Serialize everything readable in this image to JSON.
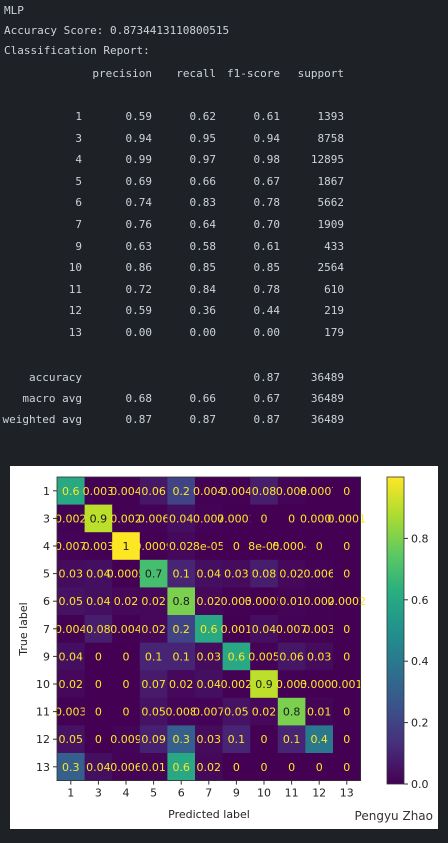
{
  "output": {
    "model_name": "MLP",
    "accuracy_line": "Accuracy Score: 0.8734413110800515",
    "report_heading": "Classification Report:"
  },
  "report": {
    "columns": [
      "precision",
      "recall",
      "f1-score",
      "support"
    ],
    "rows": [
      {
        "label": "1",
        "precision": "0.59",
        "recall": "0.62",
        "f1": "0.61",
        "support": "1393"
      },
      {
        "label": "3",
        "precision": "0.94",
        "recall": "0.95",
        "f1": "0.94",
        "support": "8758"
      },
      {
        "label": "4",
        "precision": "0.99",
        "recall": "0.97",
        "f1": "0.98",
        "support": "12895"
      },
      {
        "label": "5",
        "precision": "0.69",
        "recall": "0.66",
        "f1": "0.67",
        "support": "1867"
      },
      {
        "label": "6",
        "precision": "0.74",
        "recall": "0.83",
        "f1": "0.78",
        "support": "5662"
      },
      {
        "label": "7",
        "precision": "0.76",
        "recall": "0.64",
        "f1": "0.70",
        "support": "1909"
      },
      {
        "label": "9",
        "precision": "0.63",
        "recall": "0.58",
        "f1": "0.61",
        "support": "433"
      },
      {
        "label": "10",
        "precision": "0.86",
        "recall": "0.85",
        "f1": "0.85",
        "support": "2564"
      },
      {
        "label": "11",
        "precision": "0.72",
        "recall": "0.84",
        "f1": "0.78",
        "support": "610"
      },
      {
        "label": "12",
        "precision": "0.59",
        "recall": "0.36",
        "f1": "0.44",
        "support": "219"
      },
      {
        "label": "13",
        "precision": "0.00",
        "recall": "0.00",
        "f1": "0.00",
        "support": "179"
      }
    ],
    "summary": [
      {
        "label": "accuracy",
        "precision": "",
        "recall": "",
        "f1": "0.87",
        "support": "36489"
      },
      {
        "label": "macro avg",
        "precision": "0.68",
        "recall": "0.66",
        "f1": "0.67",
        "support": "36489"
      },
      {
        "label": "weighted avg",
        "precision": "0.87",
        "recall": "0.87",
        "f1": "0.87",
        "support": "36489"
      }
    ]
  },
  "chart_data": {
    "type": "heatmap",
    "title": "",
    "xlabel": "Predicted label",
    "ylabel": "True label",
    "x_categories": [
      "1",
      "3",
      "4",
      "5",
      "6",
      "7",
      "9",
      "10",
      "11",
      "12",
      "13"
    ],
    "y_categories": [
      "1",
      "3",
      "4",
      "5",
      "6",
      "7",
      "9",
      "10",
      "11",
      "12",
      "13"
    ],
    "values": [
      [
        0.6,
        0.003,
        0.004,
        0.06,
        0.2,
        0.004,
        0.004,
        0.08,
        0.008,
        0.0007,
        0
      ],
      [
        0.002,
        0.9,
        0.002,
        0.006,
        0.04,
        0.007,
        0.0001,
        0,
        0,
        0.0001,
        0.0001
      ],
      [
        0.007,
        0.003,
        1,
        0.0009,
        0.02,
        8e-05,
        0,
        8e-05,
        0.0004,
        0,
        0
      ],
      [
        0.03,
        0.04,
        0.0005,
        0.7,
        0.1,
        0.04,
        0.03,
        0.08,
        0.02,
        0.006,
        0
      ],
      [
        0.05,
        0.04,
        0.02,
        0.02,
        0.8,
        0.02,
        0.003,
        0.0005,
        0.01,
        0.002,
        0.0002
      ],
      [
        0.004,
        0.08,
        0.004,
        0.02,
        0.2,
        0.6,
        0.001,
        0.04,
        0.007,
        0.003,
        0
      ],
      [
        0.04,
        0,
        0,
        0.1,
        0.1,
        0.03,
        0.6,
        0.005,
        0.06,
        0.03,
        0
      ],
      [
        0.02,
        0,
        0,
        0.07,
        0.02,
        0.04,
        0.002,
        0.9,
        0.003,
        0.0008,
        0.001
      ],
      [
        0.003,
        0,
        0,
        0.05,
        0.008,
        0.007,
        0.05,
        0.02,
        0.8,
        0.01,
        0
      ],
      [
        0.05,
        0,
        0.009,
        0.09,
        0.3,
        0.03,
        0.1,
        0,
        0.1,
        0.4,
        0
      ],
      [
        0.3,
        0.04,
        0.006,
        0.01,
        0.6,
        0.02,
        0,
        0,
        0,
        0,
        0
      ]
    ],
    "cell_labels": [
      [
        "0.6",
        "0.003",
        "0.004",
        "0.06",
        "0.2",
        "0.004",
        "0.004",
        "0.08",
        "0.008",
        "0.0007",
        "0"
      ],
      [
        "0.002",
        "0.9",
        "0.002",
        "0.006",
        "0.04",
        "0.007",
        "0.0001",
        "0",
        "0",
        "0.0001",
        "0.0001"
      ],
      [
        "0.007",
        "0.003",
        "1",
        "0.0009",
        "0.02",
        "8e-05",
        "0",
        "8e-05",
        "0.0004",
        "0",
        "0"
      ],
      [
        "0.03",
        "0.04",
        "0.0005",
        "0.7",
        "0.1",
        "0.04",
        "0.03",
        "0.08",
        "0.02",
        "0.006",
        "0"
      ],
      [
        "0.05",
        "0.04",
        "0.02",
        "0.02",
        "0.8",
        "0.02",
        "0.003",
        "0.0005",
        "0.01",
        "0.002",
        "0.0002"
      ],
      [
        "0.004",
        "0.08",
        "0.004",
        "0.02",
        "0.2",
        "0.6",
        "0.001",
        "0.04",
        "0.007",
        "0.003",
        "0"
      ],
      [
        "0.04",
        "0",
        "0",
        "0.1",
        "0.1",
        "0.03",
        "0.6",
        "0.005",
        "0.06",
        "0.03",
        "0"
      ],
      [
        "0.02",
        "0",
        "0",
        "0.07",
        "0.02",
        "0.04",
        "0.002",
        "0.9",
        "0.003",
        "0.0008",
        "0.001"
      ],
      [
        "0.003",
        "0",
        "0",
        "0.05",
        "0.008",
        "0.007",
        "0.05",
        "0.02",
        "0.8",
        "0.01",
        "0"
      ],
      [
        "0.05",
        "0",
        "0.009",
        "0.09",
        "0.3",
        "0.03",
        "0.1",
        "0",
        "0.1",
        "0.4",
        "0"
      ],
      [
        "0.3",
        "0.04",
        "0.006",
        "0.01",
        "0.6",
        "0.02",
        "0",
        "0",
        "0",
        "0",
        "0"
      ]
    ],
    "colorbar": {
      "min": 0,
      "max": 1,
      "ticks": [
        0.0,
        0.2,
        0.4,
        0.6,
        0.8
      ],
      "tick_labels": [
        "0.0",
        "0.2",
        "0.4",
        "0.6",
        "0.8"
      ],
      "colormap": "viridis"
    },
    "watermark": "Pengyu Zhao"
  }
}
